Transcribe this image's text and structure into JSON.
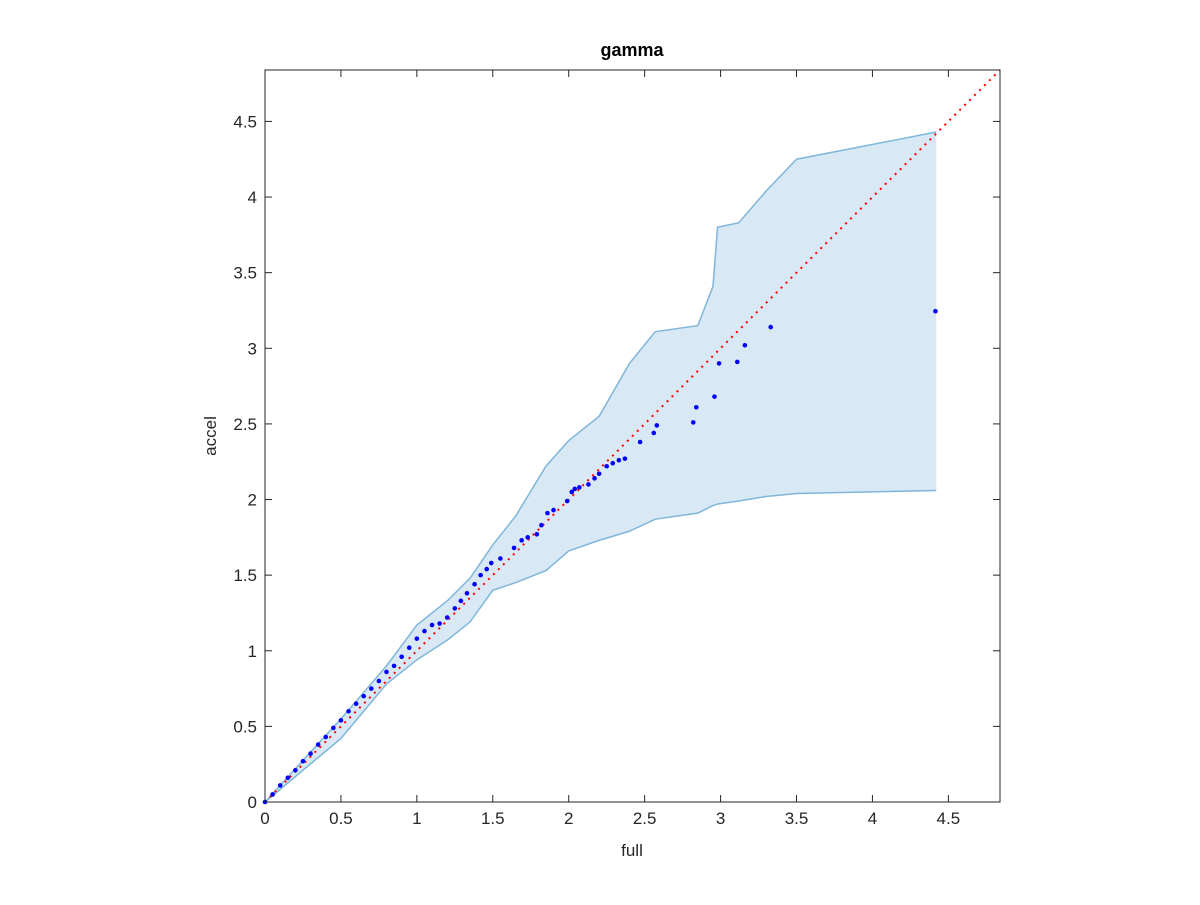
{
  "chart_data": {
    "type": "scatter",
    "title": "gamma",
    "x_label": "full",
    "y_label": "accel",
    "xlim": [
      0,
      4.84
    ],
    "ylim": [
      0,
      4.84
    ],
    "xticks": [
      0,
      0.5,
      1,
      1.5,
      2,
      2.5,
      3,
      3.5,
      4,
      4.5
    ],
    "yticks": [
      0,
      0.5,
      1,
      1.5,
      2,
      2.5,
      3,
      3.5,
      4,
      4.5
    ],
    "series": [
      {
        "color": "#0000ff",
        "x": [
          0,
          0.05,
          0.1,
          0.15,
          0.2,
          0.25,
          0.3,
          0.35,
          0.4,
          0.45,
          0.5,
          0.55,
          0.6,
          0.65,
          0.7,
          0.75,
          0.8,
          0.85,
          0.9,
          0.95,
          1.0,
          1.05,
          1.1,
          1.15,
          1.2,
          1.25,
          1.29,
          1.33,
          1.38,
          1.42,
          1.46,
          1.49,
          1.55,
          1.64,
          1.69,
          1.73,
          1.79,
          1.82,
          1.86,
          1.9,
          1.99,
          2.02,
          2.04,
          2.07,
          2.13,
          2.17,
          2.2,
          2.25,
          2.29,
          2.33,
          2.37,
          2.47,
          2.56,
          2.58,
          2.82,
          2.84,
          2.96,
          2.99,
          3.11,
          3.16,
          3.33,
          4.415
        ],
        "y": [
          0,
          0.05,
          0.11,
          0.16,
          0.21,
          0.27,
          0.32,
          0.38,
          0.43,
          0.49,
          0.54,
          0.6,
          0.65,
          0.7,
          0.75,
          0.8,
          0.86,
          0.9,
          0.96,
          1.02,
          1.08,
          1.13,
          1.17,
          1.18,
          1.22,
          1.28,
          1.33,
          1.38,
          1.44,
          1.5,
          1.54,
          1.58,
          1.61,
          1.68,
          1.73,
          1.75,
          1.77,
          1.83,
          1.91,
          1.93,
          1.99,
          2.05,
          2.07,
          2.08,
          2.1,
          2.14,
          2.17,
          2.22,
          2.24,
          2.26,
          2.27,
          2.38,
          2.44,
          2.49,
          2.51,
          2.61,
          2.68,
          2.9,
          2.91,
          3.02,
          3.14,
          3.245
        ]
      }
    ],
    "band": {
      "color": "#a8cde8",
      "edge_color": "#7fb6d9",
      "x": [
        0,
        0.5,
        0.8,
        1.0,
        1.2,
        1.35,
        1.5,
        1.65,
        1.85,
        2.0,
        2.2,
        2.4,
        2.57,
        2.85,
        2.95,
        2.98,
        3.12,
        3.3,
        3.5,
        4.42
      ],
      "upper": [
        0,
        0.55,
        0.9,
        1.17,
        1.33,
        1.48,
        1.7,
        1.89,
        2.22,
        2.39,
        2.55,
        2.9,
        3.11,
        3.15,
        3.41,
        3.8,
        3.83,
        4.04,
        4.25,
        4.43
      ],
      "lower": [
        0,
        0.42,
        0.78,
        0.94,
        1.07,
        1.19,
        1.4,
        1.45,
        1.53,
        1.66,
        1.73,
        1.79,
        1.87,
        1.91,
        1.96,
        1.97,
        1.99,
        2.02,
        2.04,
        2.06
      ]
    },
    "reference_line": {
      "x": [
        0,
        4.84
      ],
      "y": [
        0,
        4.84
      ],
      "color": "#ff0000"
    }
  }
}
